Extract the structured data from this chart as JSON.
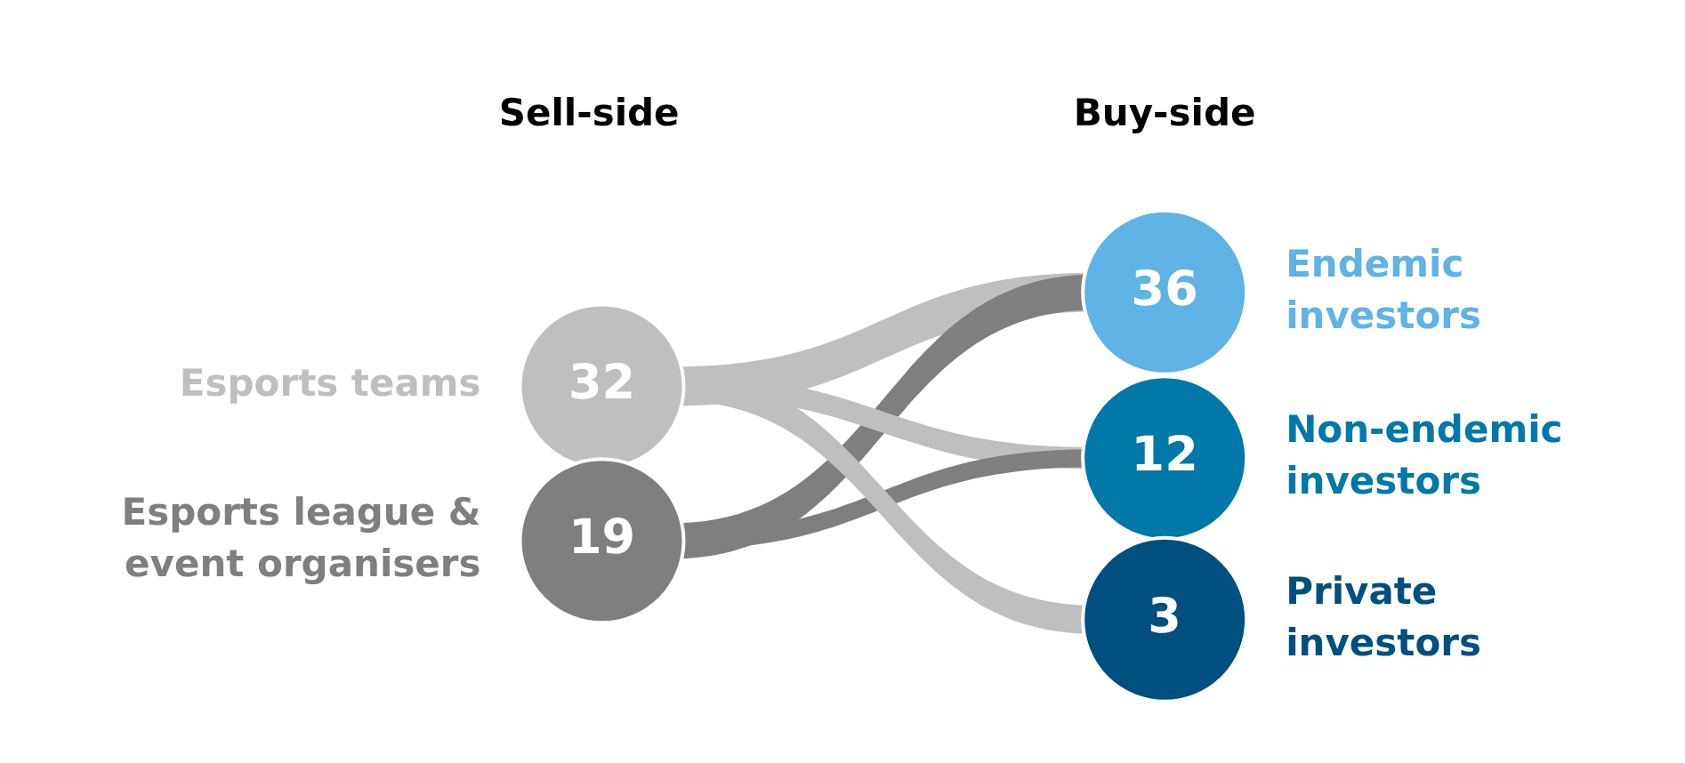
{
  "chart_data": {
    "type": "other",
    "annotations": [
      "Sell-side",
      "Buy-side"
    ],
    "categories": [
      "Esports teams",
      "Esports league & event organisers",
      "Endemic investors",
      "Non-endemic investors",
      "Private investors"
    ],
    "values": [
      32,
      19,
      36,
      12,
      3
    ],
    "colors": [
      "#bfbfbf",
      "#7f7f7f",
      "#5fb3e5",
      "#0078a8",
      "#00507f"
    ],
    "data_labels": true
  }
}
